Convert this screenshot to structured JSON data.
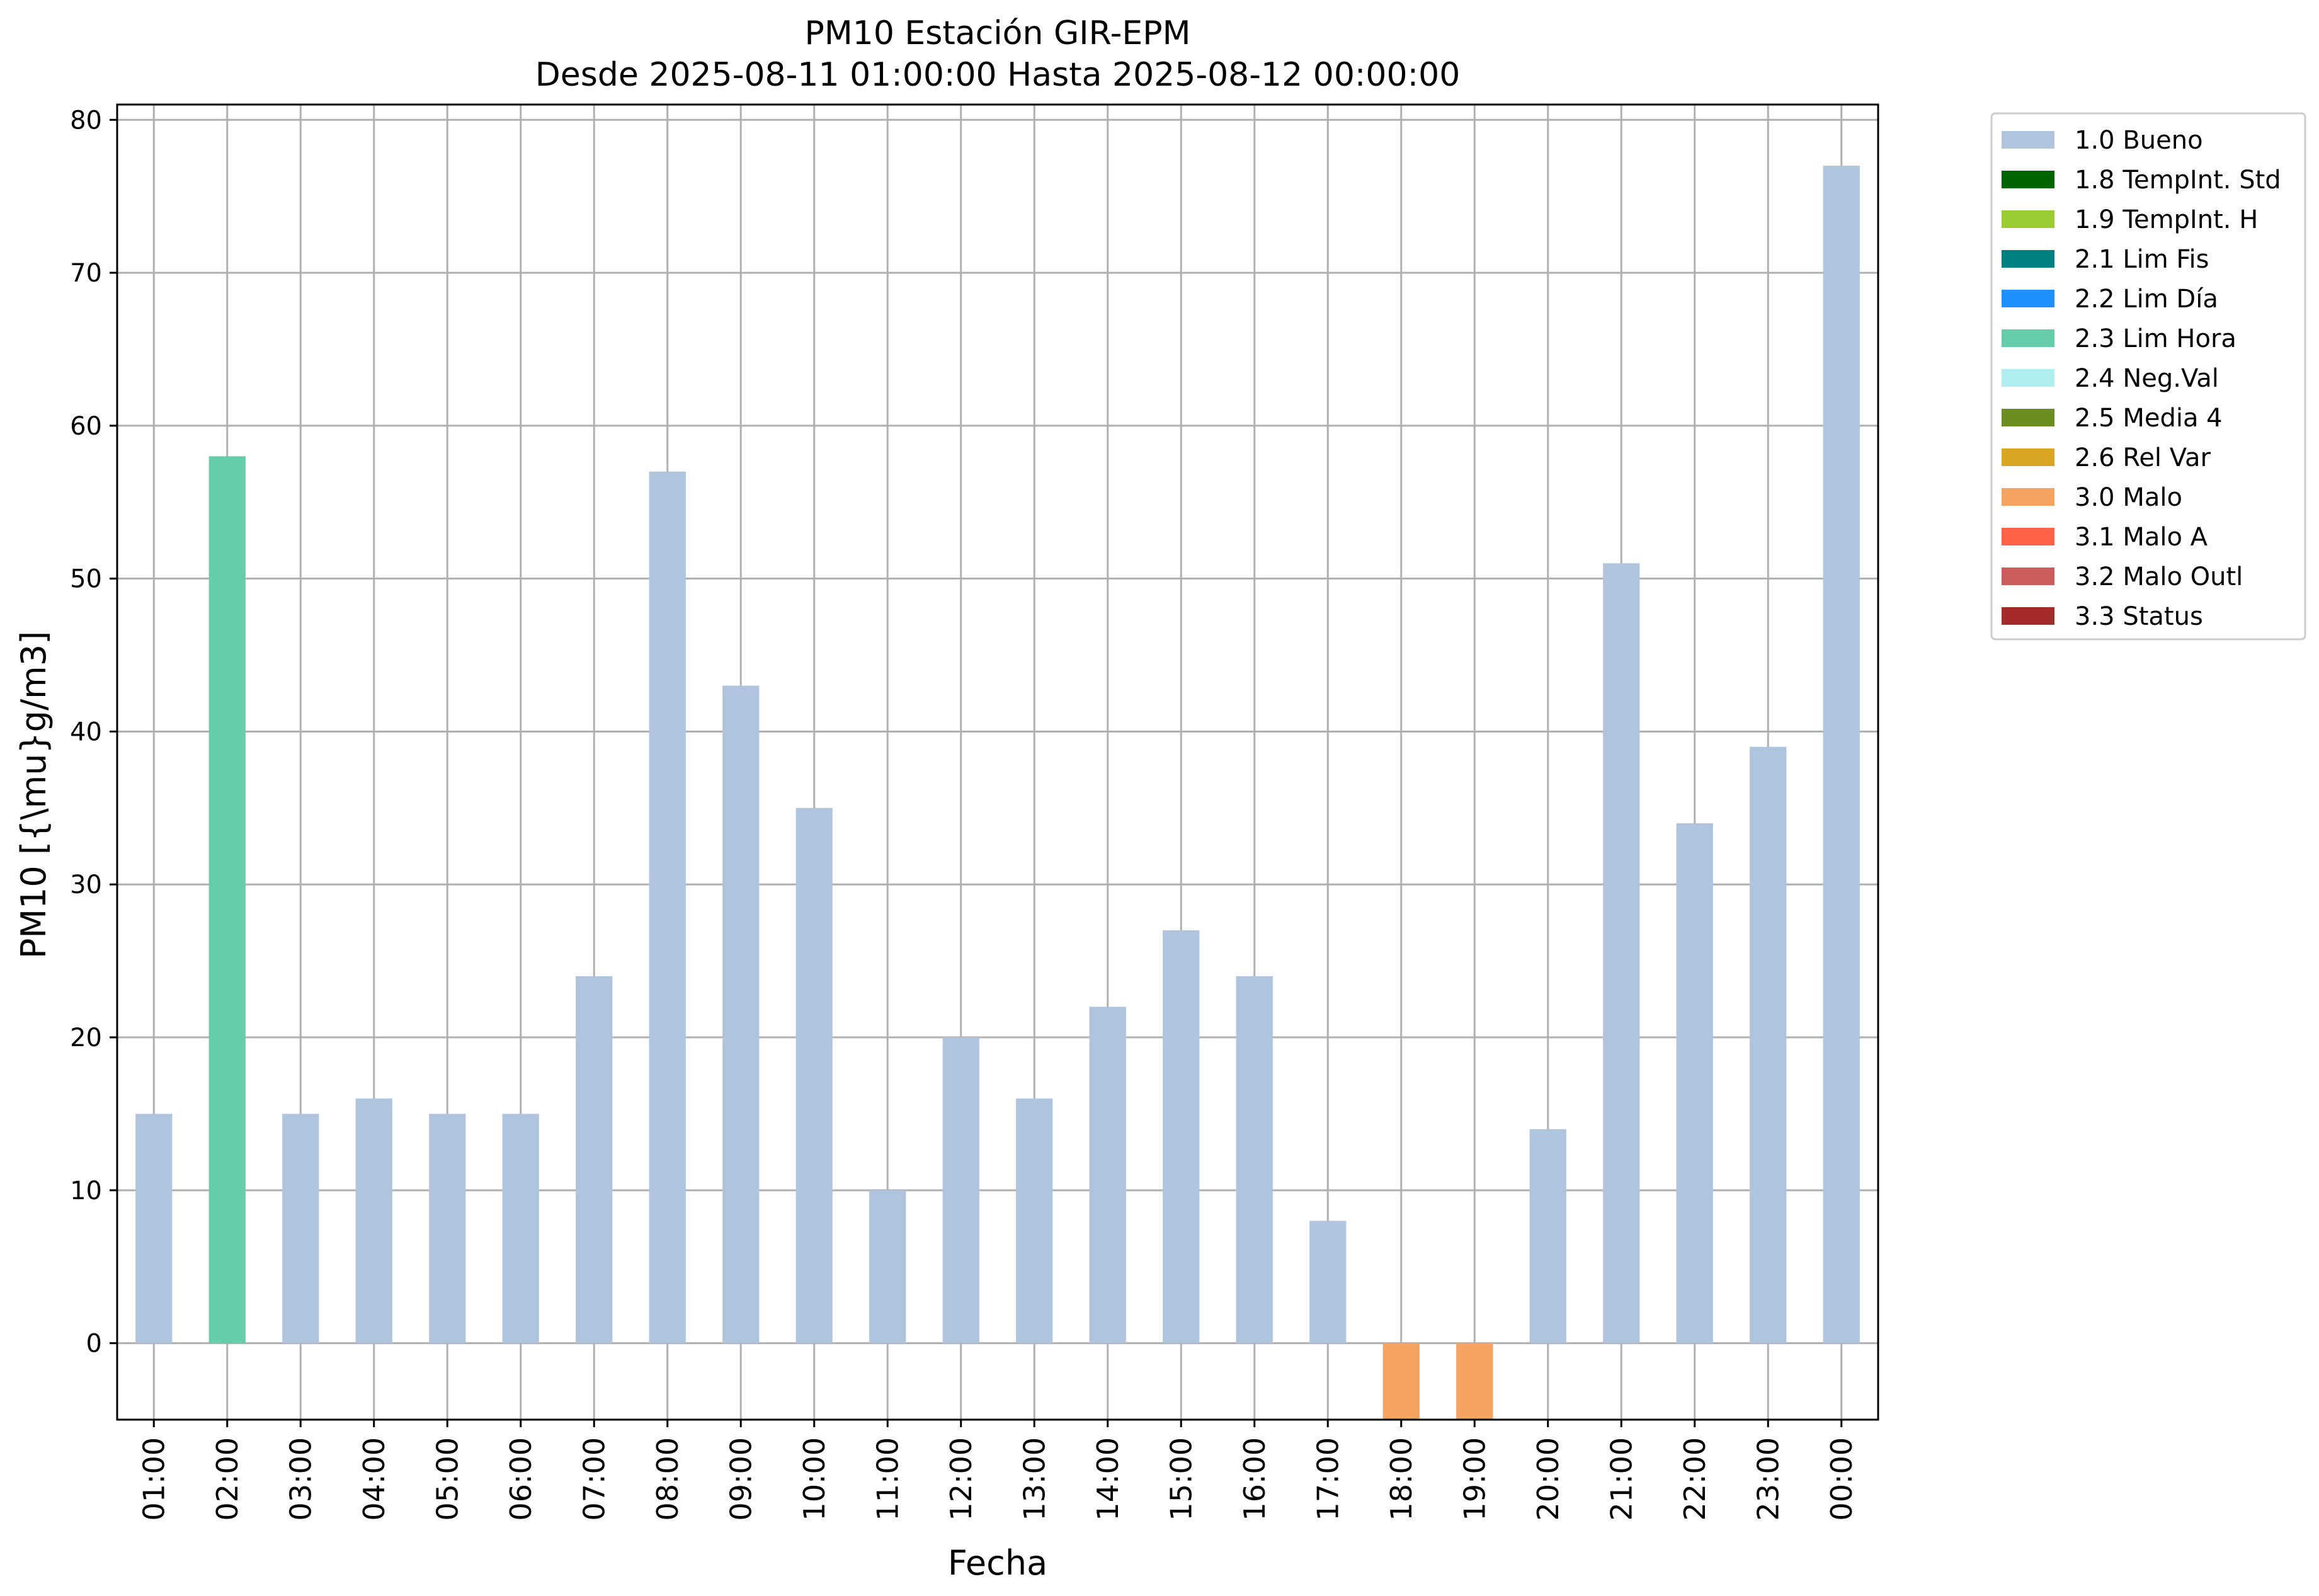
{
  "chart_data": {
    "type": "bar",
    "title_line1": "PM10 Estación GIR-EPM",
    "title_line2": "Desde 2025-08-11 01:00:00 Hasta 2025-08-12 00:00:00",
    "xlabel": "Fecha",
    "ylabel": "PM10 [{\\mu}g/m3]",
    "ylim": [
      -5,
      81
    ],
    "yticks": [
      0,
      10,
      20,
      30,
      40,
      50,
      60,
      70,
      80
    ],
    "grid": true,
    "legend_position": "outside-top-right",
    "categories": [
      "01:00",
      "02:00",
      "03:00",
      "04:00",
      "05:00",
      "06:00",
      "07:00",
      "08:00",
      "09:00",
      "10:00",
      "11:00",
      "12:00",
      "13:00",
      "14:00",
      "15:00",
      "16:00",
      "17:00",
      "18:00",
      "19:00",
      "20:00",
      "21:00",
      "22:00",
      "23:00",
      "00:00"
    ],
    "values": [
      15,
      58,
      15,
      16,
      15,
      15,
      24,
      57,
      43,
      35,
      10,
      20,
      16,
      22,
      27,
      24,
      8,
      -5,
      -5,
      14,
      51,
      34,
      39,
      77
    ],
    "flags": [
      "1.0 Bueno",
      "2.3 Lim Hora",
      "1.0 Bueno",
      "1.0 Bueno",
      "1.0 Bueno",
      "1.0 Bueno",
      "1.0 Bueno",
      "1.0 Bueno",
      "1.0 Bueno",
      "1.0 Bueno",
      "1.0 Bueno",
      "1.0 Bueno",
      "1.0 Bueno",
      "1.0 Bueno",
      "1.0 Bueno",
      "1.0 Bueno",
      "1.0 Bueno",
      "3.0 Malo",
      "3.0 Malo",
      "1.0 Bueno",
      "1.0 Bueno",
      "1.0 Bueno",
      "1.0 Bueno",
      "1.0 Bueno"
    ],
    "legend": [
      {
        "label": "1.0 Bueno",
        "color": "#b0c4de"
      },
      {
        "label": "1.8 TempInt. Std",
        "color": "#006400"
      },
      {
        "label": "1.9 TempInt. H",
        "color": "#9acd32"
      },
      {
        "label": "2.1 Lim Fis",
        "color": "#008080"
      },
      {
        "label": "2.2 Lim Día",
        "color": "#1e90ff"
      },
      {
        "label": "2.3 Lim Hora",
        "color": "#66cdaa"
      },
      {
        "label": "2.4 Neg.Val",
        "color": "#afeeee"
      },
      {
        "label": "2.5 Media 4",
        "color": "#6b8e23"
      },
      {
        "label": "2.6 Rel Var",
        "color": "#daa520"
      },
      {
        "label": "3.0 Malo",
        "color": "#f4a460"
      },
      {
        "label": "3.1 Malo A",
        "color": "#ff6347"
      },
      {
        "label": "3.2 Malo Outl",
        "color": "#cd5c5c"
      },
      {
        "label": "3.3 Status",
        "color": "#a52a2a"
      }
    ]
  }
}
